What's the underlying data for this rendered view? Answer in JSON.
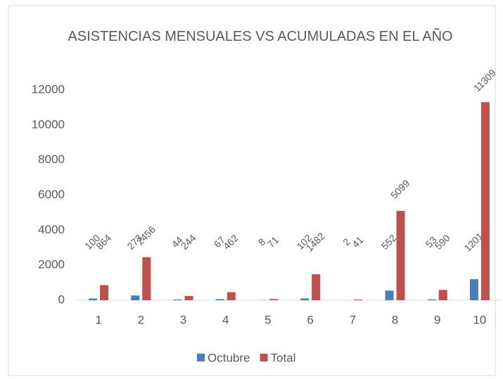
{
  "chart_data": {
    "type": "bar",
    "title": "ASISTENCIAS MENSUALES VS ACUMULADAS EN EL AÑO",
    "categories": [
      "1",
      "2",
      "3",
      "4",
      "5",
      "6",
      "7",
      "8",
      "9",
      "10"
    ],
    "series": [
      {
        "name": "Octubre",
        "color": "#4a7ebb",
        "values": [
          100,
          273,
          44,
          67,
          8,
          102,
          2,
          552,
          53,
          1201
        ]
      },
      {
        "name": "Total",
        "color": "#c0504d",
        "values": [
          864,
          2456,
          244,
          462,
          71,
          1482,
          41,
          5099,
          590,
          11309
        ]
      }
    ],
    "ylim": [
      0,
      12000
    ],
    "yticks": [
      0,
      2000,
      4000,
      6000,
      8000,
      10000,
      12000
    ],
    "grid": false,
    "legend": "bottom"
  }
}
